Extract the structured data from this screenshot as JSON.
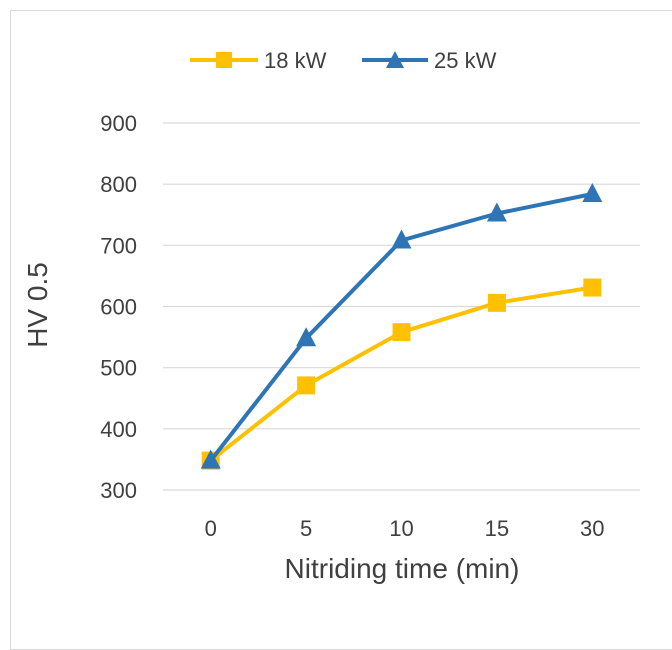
{
  "chart_data": {
    "type": "line",
    "categories": [
      "0",
      "5",
      "10",
      "15",
      "30"
    ],
    "series": [
      {
        "name": "18 kW",
        "values": [
          348,
          471,
          558,
          606,
          631
        ],
        "color": "#FFC000",
        "marker": "square"
      },
      {
        "name": "25 kW",
        "values": [
          348,
          548,
          708,
          752,
          784
        ],
        "color": "#2E75B6",
        "marker": "triangle"
      }
    ],
    "title": "",
    "xlabel": "Nitriding time (min)",
    "ylabel": "HV 0.5",
    "ylim": [
      300,
      900
    ],
    "yticks": [
      300,
      400,
      500,
      600,
      700,
      800,
      900
    ],
    "grid": true,
    "legend_position": "top"
  }
}
